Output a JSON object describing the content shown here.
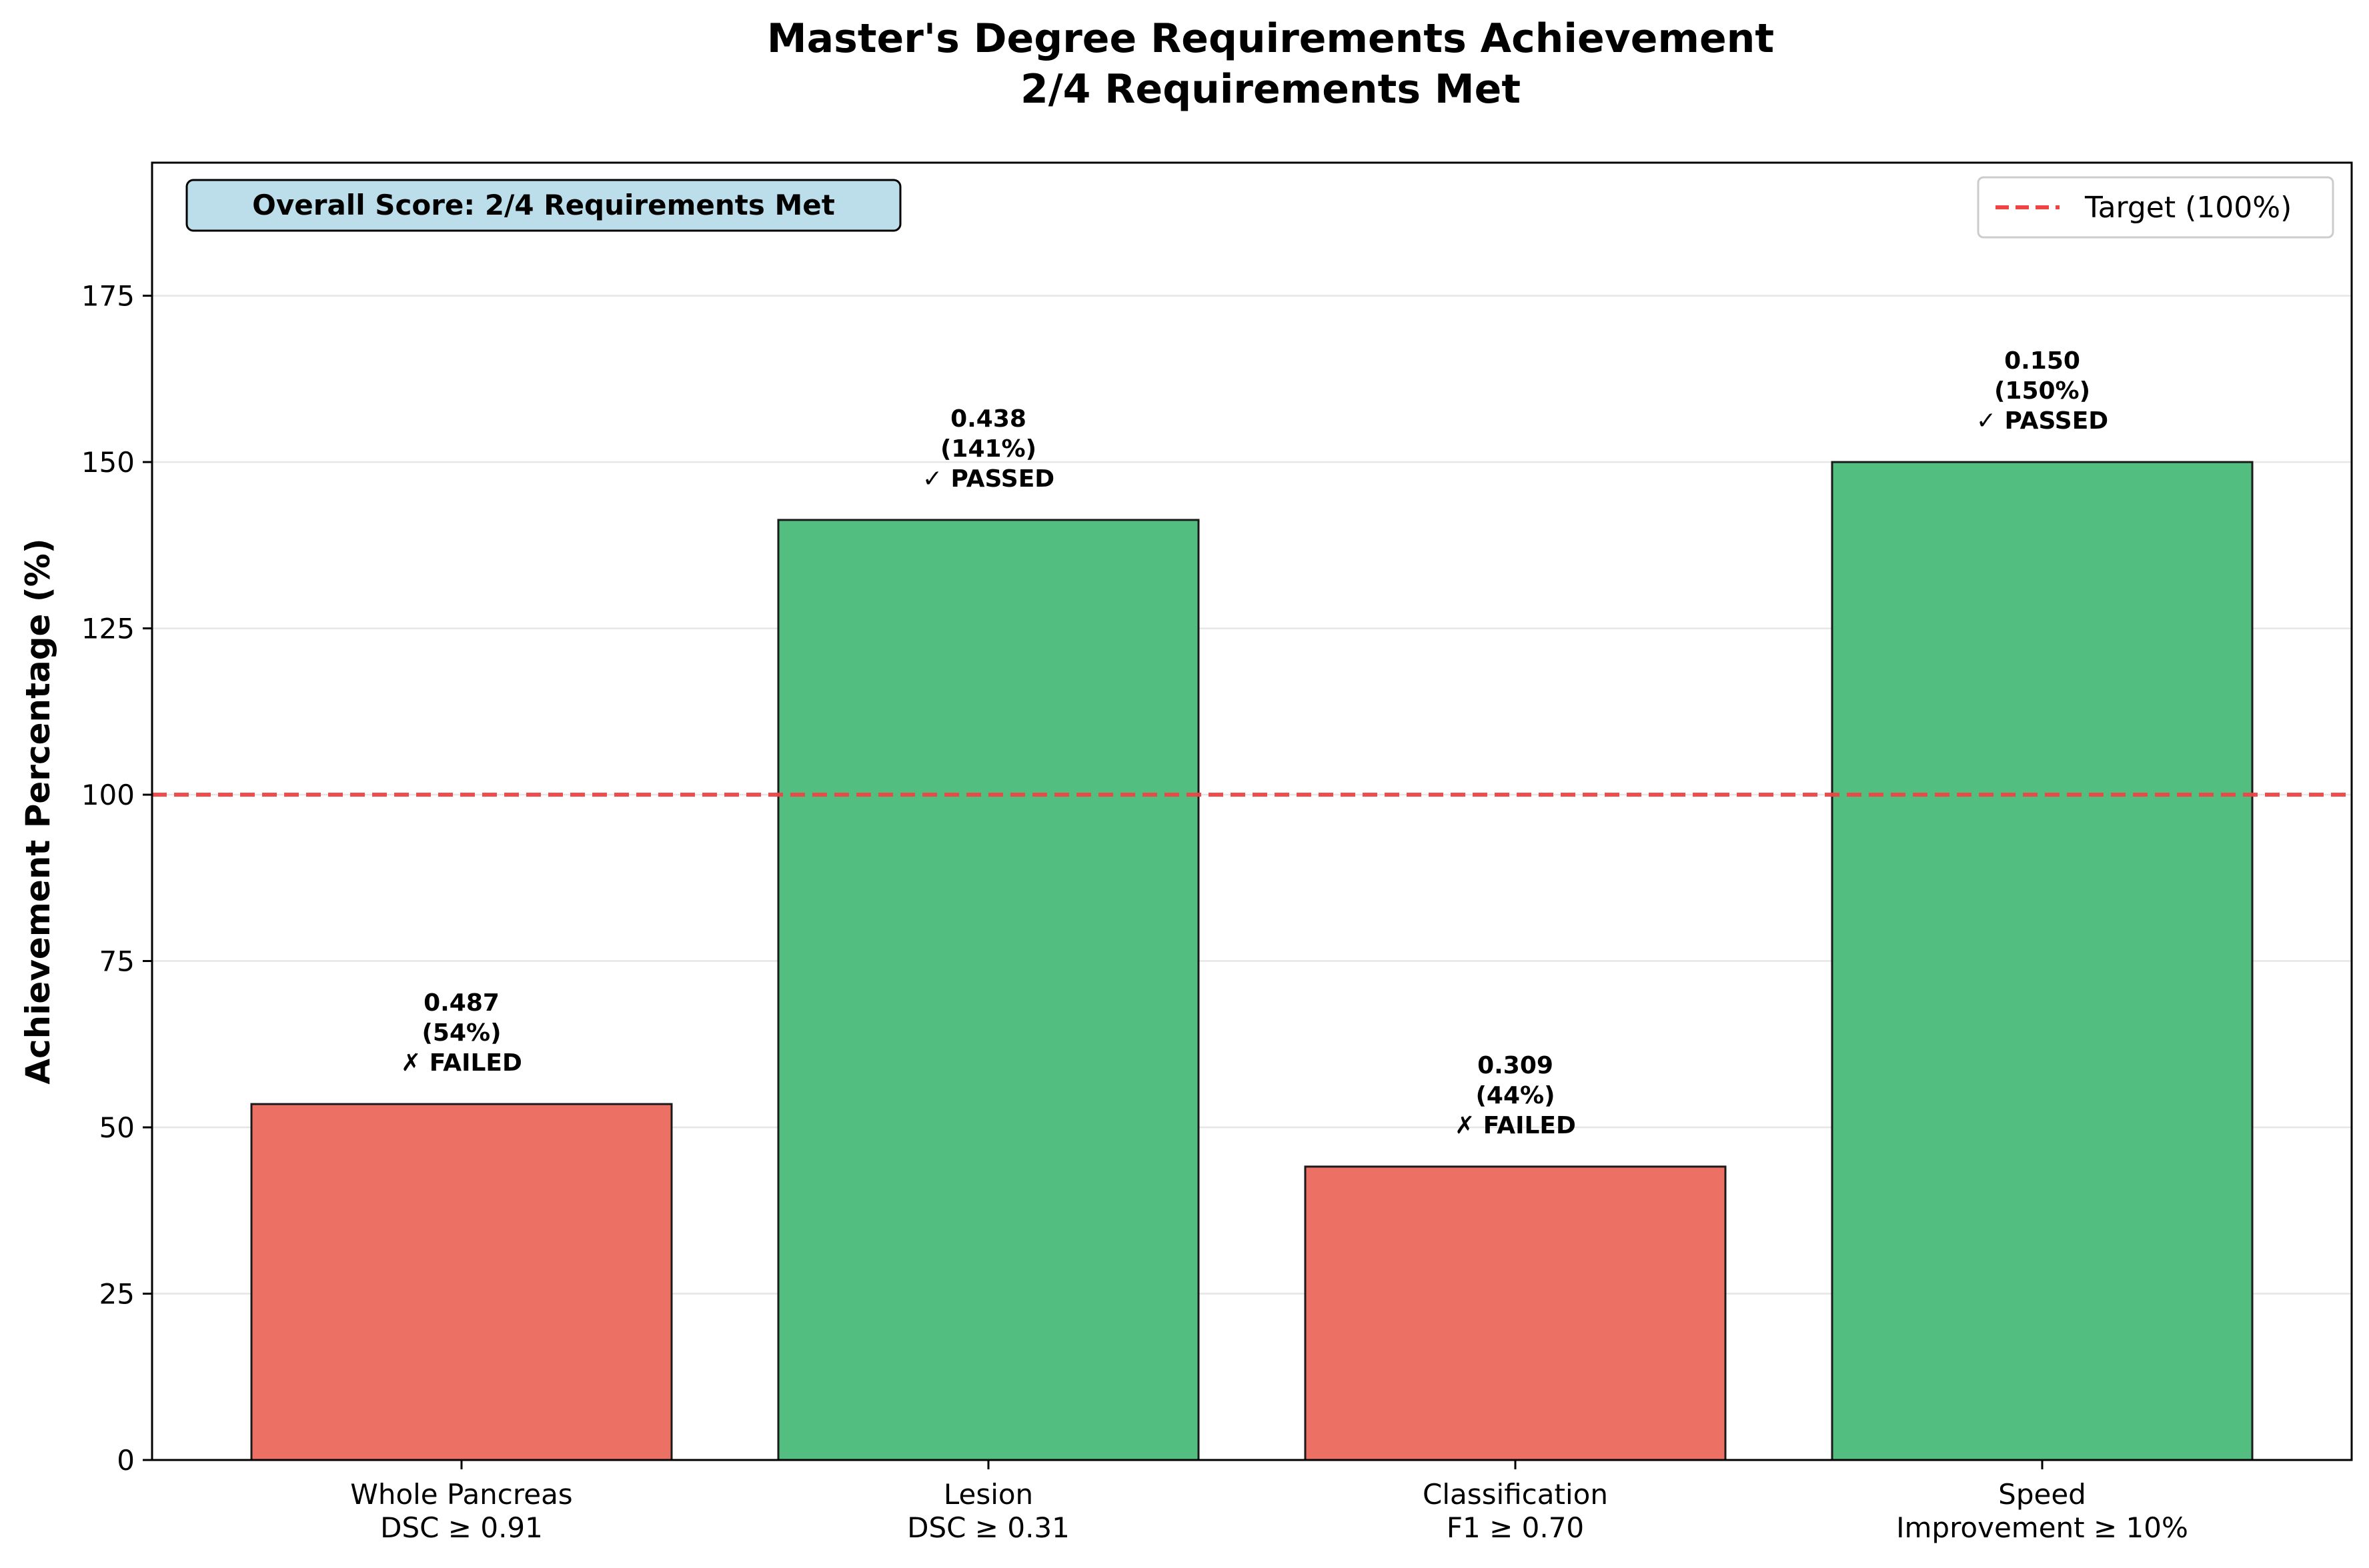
{
  "chart_data": {
    "type": "bar",
    "title_lines": [
      "Master's Degree Requirements Achievement",
      "2/4 Requirements Met"
    ],
    "ylabel": "Achievement Percentage (%)",
    "xlabel": "",
    "ylim": [
      0,
      195
    ],
    "yticks": [
      0,
      25,
      50,
      75,
      100,
      125,
      150,
      175
    ],
    "grid": "y",
    "categories": [
      [
        "Whole Pancreas",
        "DSC ≥ 0.91"
      ],
      [
        "Lesion",
        "DSC ≥ 0.31"
      ],
      [
        "Classification",
        "F1 ≥ 0.70"
      ],
      [
        "Speed",
        "Improvement ≥ 10%"
      ]
    ],
    "values": [
      53.5,
      141.3,
      44.1,
      150.0
    ],
    "bar_labels": [
      [
        "0.487",
        "(54%)",
        "✗ FAILED"
      ],
      [
        "0.438",
        "(141%)",
        "✓ PASSED"
      ],
      [
        "0.309",
        "(44%)",
        "✗ FAILED"
      ],
      [
        "0.150",
        "(150%)",
        "✓ PASSED"
      ]
    ],
    "bar_colors": [
      "#ec7063",
      "#52be80",
      "#ec7063",
      "#52be80"
    ],
    "target": {
      "value": 100,
      "label": "Target (100%)",
      "color": "#ef4444"
    },
    "legend_position": "top-right",
    "score_box": {
      "text": "Overall Score: 2/4 Requirements Met",
      "bg": "#bcdeeb"
    }
  }
}
